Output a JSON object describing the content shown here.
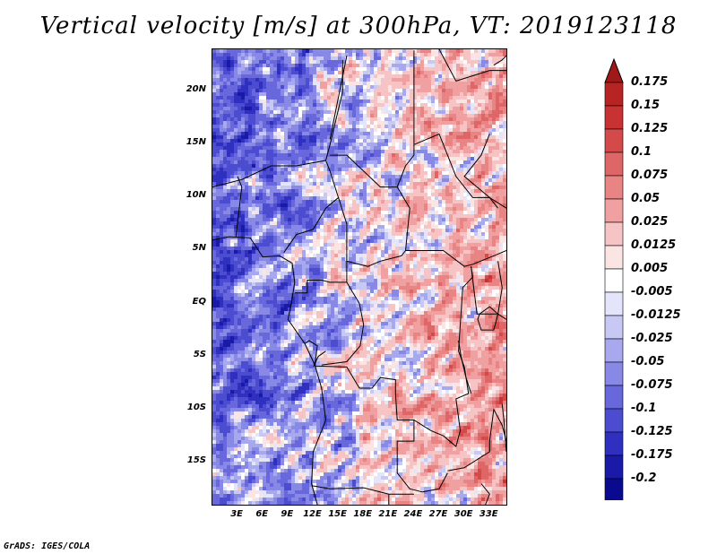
{
  "title": "Vertical velocity [m/s] at 300hPa, VT: 2019123118",
  "footer": "GrADS: IGES/COLA",
  "map": {
    "projection": "latlon",
    "lon_range": [
      0,
      35
    ],
    "lat_range": [
      -19,
      24
    ],
    "lat_ticks": [
      {
        "value": 20,
        "label": "20N"
      },
      {
        "value": 15,
        "label": "15N"
      },
      {
        "value": 10,
        "label": "10N"
      },
      {
        "value": 5,
        "label": "5N"
      },
      {
        "value": 0,
        "label": "EQ"
      },
      {
        "value": -5,
        "label": "5S"
      },
      {
        "value": -10,
        "label": "10S"
      },
      {
        "value": -15,
        "label": "15S"
      }
    ],
    "lon_ticks": [
      {
        "value": 3,
        "label": "3E"
      },
      {
        "value": 6,
        "label": "6E"
      },
      {
        "value": 9,
        "label": "9E"
      },
      {
        "value": 12,
        "label": "12E"
      },
      {
        "value": 15,
        "label": "15E"
      },
      {
        "value": 18,
        "label": "18E"
      },
      {
        "value": 21,
        "label": "21E"
      },
      {
        "value": 24,
        "label": "24E"
      },
      {
        "value": 27,
        "label": "27E"
      },
      {
        "value": 30,
        "label": "30E"
      },
      {
        "value": 33,
        "label": "33E"
      }
    ],
    "field": "vertical velocity",
    "units": "m/s",
    "level": "300hPa"
  },
  "colorbar": {
    "labels": [
      "0.175",
      "0.15",
      "0.125",
      "0.1",
      "0.075",
      "0.05",
      "0.025",
      "0.0125",
      "0.005",
      "-0.005",
      "-0.0125",
      "-0.025",
      "-0.05",
      "-0.075",
      "-0.1",
      "-0.125",
      "-0.175",
      "-0.2"
    ],
    "colors": [
      "#a01818",
      "#b82424",
      "#c83232",
      "#d44a4a",
      "#de6666",
      "#e88484",
      "#f0a0a0",
      "#f6c4c4",
      "#fbe4e4",
      "#ffffff",
      "#e4e4fb",
      "#c8c8f4",
      "#a8a8ee",
      "#8888e6",
      "#6868dc",
      "#4c4cd0",
      "#3030c0",
      "#1a1aa8",
      "#0a0a90",
      "#000080"
    ]
  }
}
